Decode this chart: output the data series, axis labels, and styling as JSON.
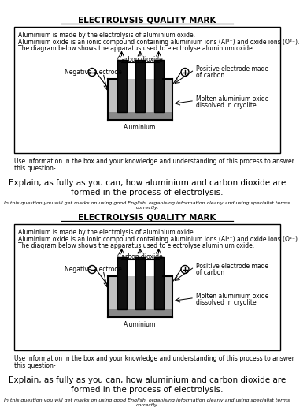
{
  "title": "ELECTROLYSIS QUALITY MARK",
  "line1": "Aluminium is made by the electrolysis of aluminium oxide.",
  "line2": "Aluminium oxide is an ionic compound containing aluminium ions (Al³⁺) and oxide ions (O²⁻).",
  "line3": "The diagram below shows the apparatus used to electrolyse aluminium oxide.",
  "use_line1": "Use information in the box and your knowledge and understanding of this process to answer",
  "use_line2": "this question-",
  "q_line1": "Explain, as fully as you can, how aluminium and carbon dioxide are",
  "q_line2": "formed in the process of electrolysis.",
  "italic_note": "In this question you will get marks on using good English, organising information clearly and using specialist terms correctly.",
  "lbl_co2": "Carbon dioxide",
  "lbl_neg": "Negative electrode",
  "lbl_pos1": "Positive electrode made",
  "lbl_pos2": "of carbon",
  "lbl_mol1": "Molten aluminium oxide",
  "lbl_mol2": "dissolved in cryolite",
  "lbl_al": "Aluminium",
  "bg": "#ffffff",
  "elec_color": "#111111",
  "liq_color": "#c0c0c0",
  "bot_color": "#888888"
}
